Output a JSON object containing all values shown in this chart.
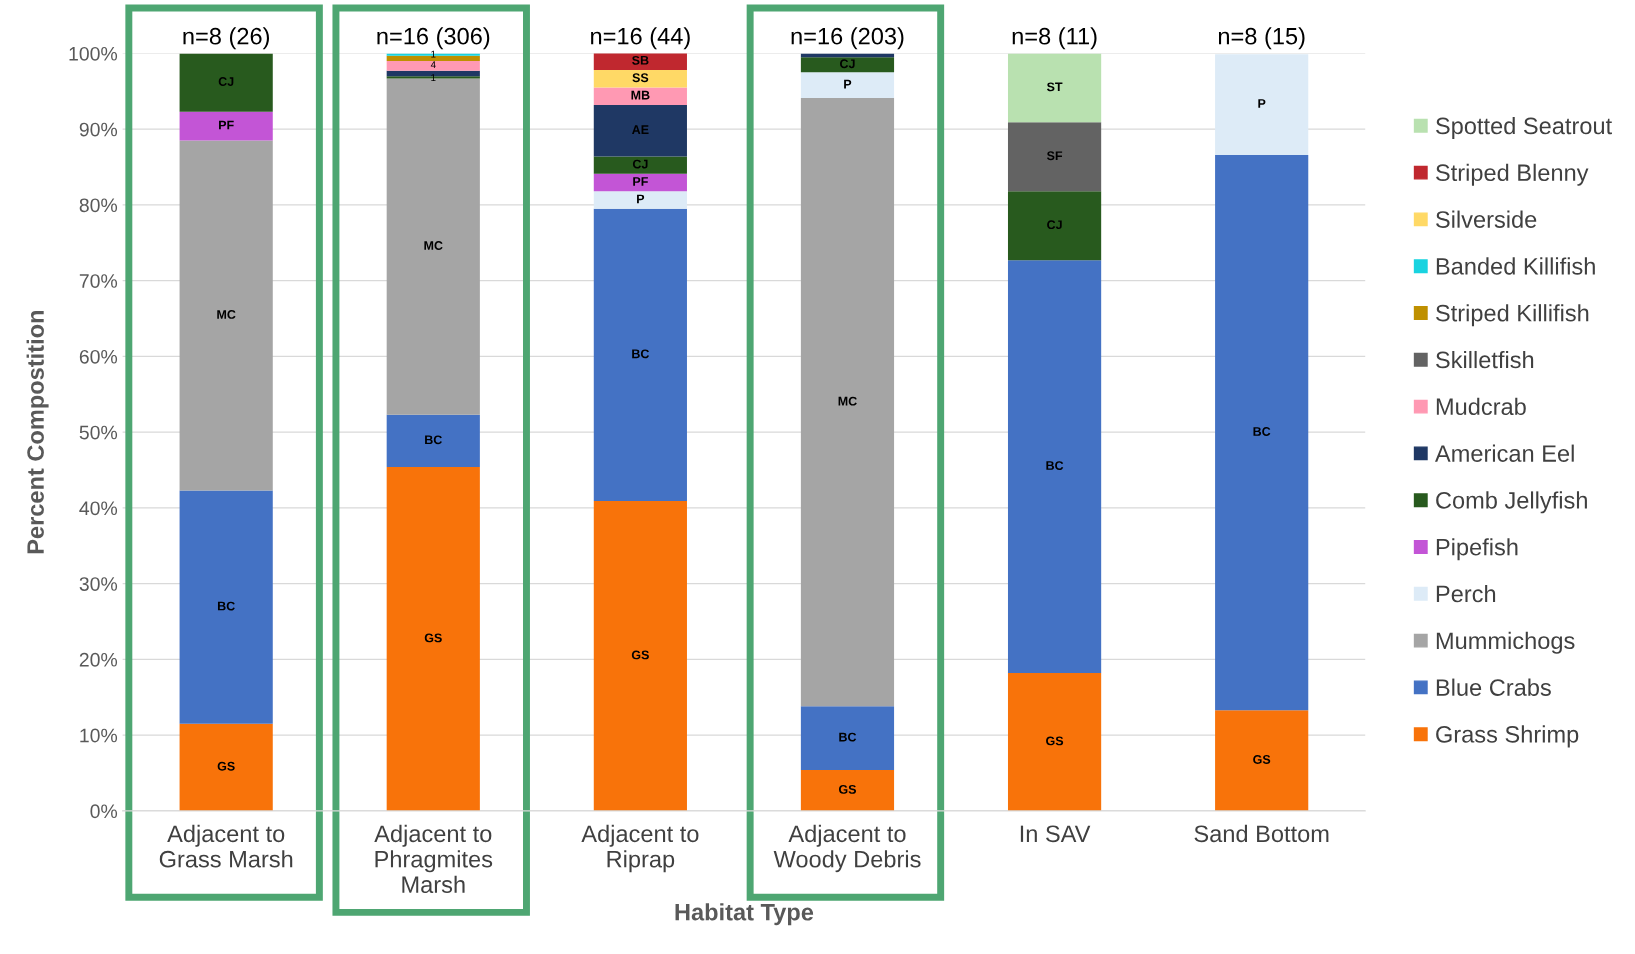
{
  "chart_data": {
    "type": "bar",
    "stacked": true,
    "categories": [
      "Adjacent to\nGrass Marsh",
      "Adjacent to\nPhragmites\nMarsh",
      "Adjacent to\nRiprap",
      "Adjacent to\nWoody Debris",
      "In SAV",
      "Sand Bottom"
    ],
    "xlabel": "Habitat Type",
    "ylabel": "Percent Compostition",
    "ylim": [
      0,
      100
    ],
    "yticks": [
      {
        "value": 0,
        "label": "0%"
      },
      {
        "value": 10,
        "label": "10%"
      },
      {
        "value": 20,
        "label": "20%"
      },
      {
        "value": 30,
        "label": "30%"
      },
      {
        "value": 40,
        "label": "40%"
      },
      {
        "value": 50,
        "label": "50%"
      },
      {
        "value": 60,
        "label": "60%"
      },
      {
        "value": 70,
        "label": "70%"
      },
      {
        "value": 80,
        "label": "80%"
      },
      {
        "value": 90,
        "label": "90%"
      },
      {
        "value": 100,
        "label": "100%"
      }
    ],
    "grid": "y",
    "legend": "right",
    "annotations": [
      {
        "text": "n=8 (26)",
        "x": "Adjacent to\nGrass Marsh",
        "y": 100
      },
      {
        "text": "n=16 (306)",
        "x": "Adjacent to\nPhragmites\nMarsh",
        "y": 100
      },
      {
        "text": "n=16 (44)",
        "x": "Adjacent to\nRiprap",
        "y": 100
      },
      {
        "text": "n=16 (203)",
        "x": "Adjacent to\nWoody Debris",
        "y": 100
      },
      {
        "text": "n=8 (11)",
        "x": "In SAV",
        "y": 100
      },
      {
        "text": "n=8 (15)",
        "x": "Sand Bottom",
        "y": 100
      },
      {
        "text": "1",
        "x": "Adjacent to\nPhragmites\nMarsh",
        "y": 96.7
      },
      {
        "text": "4",
        "x": "Adjacent to\nPhragmites\nMarsh",
        "y": 98.4
      },
      {
        "text": "1",
        "x": "Adjacent to\nPhragmites\nMarsh",
        "y": 99.8
      }
    ],
    "series": [
      {
        "name": "Grass Shrimp",
        "color": "#f8730a",
        "values": [
          11.5,
          45.4,
          40.9,
          5.4,
          18.2,
          13.3
        ],
        "value_labels": [
          "GS",
          "GS",
          "GS",
          "GS",
          "GS",
          "GS"
        ]
      },
      {
        "name": "Blue Crabs",
        "color": "#4472c4",
        "values": [
          30.8,
          6.9,
          38.6,
          8.4,
          54.5,
          73.3
        ],
        "value_labels": [
          "BC",
          "BC",
          "BC",
          "BC",
          "BC",
          "BC"
        ]
      },
      {
        "name": "Mummichogs",
        "color": "#a5a5a5",
        "values": [
          46.2,
          44.4,
          null,
          80.3,
          null,
          null
        ],
        "value_labels": [
          "MC",
          "MC",
          null,
          "MC",
          null,
          null
        ]
      },
      {
        "name": "Perch",
        "color": "#ddebf7",
        "values": [
          null,
          null,
          2.3,
          3.4,
          null,
          13.3
        ],
        "value_labels": [
          null,
          null,
          "P",
          "P",
          null,
          "P"
        ]
      },
      {
        "name": "Pipefish",
        "color": "#c355d6",
        "values": [
          3.8,
          null,
          2.3,
          null,
          null,
          null
        ],
        "value_labels": [
          "PF",
          null,
          "PF",
          null,
          null,
          null
        ]
      },
      {
        "name": "Comb Jellyfish",
        "color": "#285a1e",
        "values": [
          7.7,
          0.3,
          2.3,
          2.0,
          9.1,
          null
        ],
        "value_labels": [
          "CJ",
          null,
          "CJ",
          "CJ",
          "CJ",
          null
        ]
      },
      {
        "name": "American Eel",
        "color": "#1f3864",
        "values": [
          null,
          0.7,
          6.8,
          0.5,
          null,
          null
        ],
        "value_labels": [
          null,
          null,
          "AE",
          null,
          null,
          null
        ]
      },
      {
        "name": "Mudcrab",
        "color": "#ff99b3",
        "values": [
          null,
          1.3,
          2.3,
          null,
          null,
          null
        ],
        "value_labels": [
          null,
          null,
          "MB",
          null,
          null,
          null
        ]
      },
      {
        "name": "Skilletfish",
        "color": "#636363",
        "values": [
          null,
          null,
          null,
          null,
          9.1,
          null
        ],
        "value_labels": [
          null,
          null,
          null,
          null,
          "SF",
          null
        ]
      },
      {
        "name": "Striped Killifish",
        "color": "#bf9000",
        "values": [
          null,
          0.7,
          null,
          null,
          null,
          null
        ],
        "value_labels": [
          null,
          null,
          null,
          null,
          null,
          null
        ]
      },
      {
        "name": "Banded Killifish",
        "color": "#19d3e0",
        "values": [
          null,
          0.3,
          null,
          null,
          null,
          null
        ],
        "value_labels": [
          null,
          null,
          null,
          null,
          null,
          null
        ]
      },
      {
        "name": "Silverside",
        "color": "#ffd966",
        "values": [
          null,
          null,
          2.3,
          null,
          null,
          null
        ],
        "value_labels": [
          null,
          null,
          "SS",
          null,
          null,
          null
        ]
      },
      {
        "name": "Striped Blenny",
        "color": "#c0282f",
        "values": [
          null,
          null,
          2.3,
          null,
          null,
          null
        ],
        "value_labels": [
          null,
          null,
          "SB",
          null,
          null,
          null
        ]
      },
      {
        "name": "Spotted Seatrout",
        "color": "#b9e1b0",
        "values": [
          null,
          null,
          null,
          null,
          9.1,
          null
        ],
        "value_labels": [
          null,
          null,
          null,
          null,
          "ST",
          null
        ]
      }
    ]
  }
}
